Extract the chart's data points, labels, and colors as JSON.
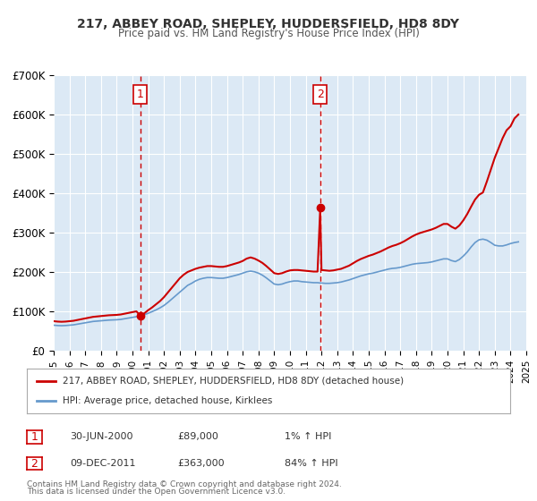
{
  "title1": "217, ABBEY ROAD, SHEPLEY, HUDDERSFIELD, HD8 8DY",
  "title2": "Price paid vs. HM Land Registry's House Price Index (HPI)",
  "xlabel": "",
  "ylabel": "",
  "ylim": [
    0,
    700000
  ],
  "yticks": [
    0,
    100000,
    200000,
    300000,
    400000,
    500000,
    600000,
    700000
  ],
  "ytick_labels": [
    "£0",
    "£100K",
    "£200K",
    "£300K",
    "£400K",
    "£500K",
    "£600K",
    "£700K"
  ],
  "bg_color": "#ffffff",
  "plot_bg_color": "#dce9f5",
  "grid_color": "#ffffff",
  "red_line_color": "#cc0000",
  "blue_line_color": "#6699cc",
  "marker_color": "#cc0000",
  "vline_color": "#cc0000",
  "annotation_bg": "#ffffff",
  "annotation_border": "#cc0000",
  "legend_label_red": "217, ABBEY ROAD, SHEPLEY, HUDDERSFIELD, HD8 8DY (detached house)",
  "legend_label_blue": "HPI: Average price, detached house, Kirklees",
  "sale1_date": "30-JUN-2000",
  "sale1_price": "£89,000",
  "sale1_hpi": "1% ↑ HPI",
  "sale1_year": 2000.5,
  "sale1_value": 89000,
  "sale2_date": "09-DEC-2011",
  "sale2_price": "£363,000",
  "sale2_hpi": "84% ↑ HPI",
  "sale2_year": 2011.92,
  "sale2_value": 363000,
  "footer1": "Contains HM Land Registry data © Crown copyright and database right 2024.",
  "footer2": "This data is licensed under the Open Government Licence v3.0.",
  "hpi_data": {
    "years": [
      1995.0,
      1995.25,
      1995.5,
      1995.75,
      1996.0,
      1996.25,
      1996.5,
      1996.75,
      1997.0,
      1997.25,
      1997.5,
      1997.75,
      1998.0,
      1998.25,
      1998.5,
      1998.75,
      1999.0,
      1999.25,
      1999.5,
      1999.75,
      2000.0,
      2000.25,
      2000.5,
      2000.75,
      2001.0,
      2001.25,
      2001.5,
      2001.75,
      2002.0,
      2002.25,
      2002.5,
      2002.75,
      2003.0,
      2003.25,
      2003.5,
      2003.75,
      2004.0,
      2004.25,
      2004.5,
      2004.75,
      2005.0,
      2005.25,
      2005.5,
      2005.75,
      2006.0,
      2006.25,
      2006.5,
      2006.75,
      2007.0,
      2007.25,
      2007.5,
      2007.75,
      2008.0,
      2008.25,
      2008.5,
      2008.75,
      2009.0,
      2009.25,
      2009.5,
      2009.75,
      2010.0,
      2010.25,
      2010.5,
      2010.75,
      2011.0,
      2011.25,
      2011.5,
      2011.75,
      2012.0,
      2012.25,
      2012.5,
      2012.75,
      2013.0,
      2013.25,
      2013.5,
      2013.75,
      2014.0,
      2014.25,
      2014.5,
      2014.75,
      2015.0,
      2015.25,
      2015.5,
      2015.75,
      2016.0,
      2016.25,
      2016.5,
      2016.75,
      2017.0,
      2017.25,
      2017.5,
      2017.75,
      2018.0,
      2018.25,
      2018.5,
      2018.75,
      2019.0,
      2019.25,
      2019.5,
      2019.75,
      2020.0,
      2020.25,
      2020.5,
      2020.75,
      2021.0,
      2021.25,
      2021.5,
      2021.75,
      2022.0,
      2022.25,
      2022.5,
      2022.75,
      2023.0,
      2023.25,
      2023.5,
      2023.75,
      2024.0,
      2024.25,
      2024.5
    ],
    "values": [
      75000,
      74000,
      73500,
      74000,
      75000,
      76000,
      78000,
      80000,
      82000,
      84000,
      86000,
      87000,
      88000,
      89000,
      90000,
      90500,
      91000,
      92000,
      94000,
      96000,
      98000,
      100000,
      103000,
      106000,
      110000,
      115000,
      120000,
      126000,
      133000,
      142000,
      152000,
      162000,
      172000,
      182000,
      192000,
      198000,
      205000,
      210000,
      213000,
      215000,
      215000,
      214000,
      213000,
      213000,
      215000,
      218000,
      221000,
      224000,
      228000,
      232000,
      234000,
      232000,
      228000,
      222000,
      214000,
      205000,
      196000,
      194000,
      196000,
      200000,
      203000,
      205000,
      205000,
      203000,
      202000,
      201000,
      200000,
      200000,
      199000,
      198000,
      198000,
      199000,
      200000,
      202000,
      205000,
      208000,
      212000,
      216000,
      220000,
      223000,
      226000,
      228000,
      231000,
      234000,
      237000,
      240000,
      242000,
      243000,
      245000,
      248000,
      251000,
      254000,
      256000,
      257000,
      258000,
      259000,
      261000,
      264000,
      267000,
      270000,
      270000,
      265000,
      262000,
      268000,
      278000,
      290000,
      305000,
      318000,
      326000,
      328000,
      325000,
      318000,
      310000,
      308000,
      308000,
      311000,
      315000,
      318000,
      320000
    ]
  },
  "hpi_scaled_data": {
    "years": [
      1995.0,
      1995.25,
      1995.5,
      1995.75,
      1996.0,
      1996.25,
      1996.5,
      1996.75,
      1997.0,
      1997.25,
      1997.5,
      1997.75,
      1998.0,
      1998.25,
      1998.5,
      1998.75,
      1999.0,
      1999.25,
      1999.5,
      1999.75,
      2000.0,
      2000.25,
      2000.5,
      2000.75,
      2001.0,
      2001.25,
      2001.5,
      2001.75,
      2002.0,
      2002.25,
      2002.5,
      2002.75,
      2003.0,
      2003.25,
      2003.5,
      2003.75,
      2004.0,
      2004.25,
      2004.5,
      2004.75,
      2005.0,
      2005.25,
      2005.5,
      2005.75,
      2006.0,
      2006.25,
      2006.5,
      2006.75,
      2007.0,
      2007.25,
      2007.5,
      2007.75,
      2008.0,
      2008.25,
      2008.5,
      2008.75,
      2009.0,
      2009.25,
      2009.5,
      2009.75,
      2010.0,
      2010.25,
      2010.5,
      2010.75,
      2011.0,
      2011.25,
      2011.5,
      2011.75,
      2011.92,
      2012.0,
      2012.25,
      2012.5,
      2012.75,
      2013.0,
      2013.25,
      2013.5,
      2013.75,
      2014.0,
      2014.25,
      2014.5,
      2014.75,
      2015.0,
      2015.25,
      2015.5,
      2015.75,
      2016.0,
      2016.25,
      2016.5,
      2016.75,
      2017.0,
      2017.25,
      2017.5,
      2017.75,
      2018.0,
      2018.25,
      2018.5,
      2018.75,
      2019.0,
      2019.25,
      2019.5,
      2019.75,
      2020.0,
      2020.25,
      2020.5,
      2020.75,
      2021.0,
      2021.25,
      2021.5,
      2021.75,
      2022.0,
      2022.25,
      2022.5,
      2022.75,
      2023.0,
      2023.25,
      2023.5,
      2023.75,
      2024.0,
      2024.25,
      2024.5
    ],
    "values": [
      75000,
      74000,
      73500,
      74000,
      75000,
      76000,
      78000,
      80000,
      82000,
      84000,
      86000,
      87000,
      88000,
      89000,
      90000,
      90500,
      91000,
      92000,
      94000,
      96000,
      98000,
      100000,
      103000,
      106000,
      110000,
      115000,
      120000,
      126000,
      133000,
      142000,
      152000,
      162000,
      172000,
      182000,
      192000,
      198000,
      205000,
      210000,
      213000,
      215000,
      215000,
      214000,
      213000,
      213000,
      215000,
      218000,
      221000,
      224000,
      228000,
      232000,
      234000,
      232000,
      228000,
      222000,
      214000,
      205000,
      196000,
      194000,
      196000,
      200000,
      203000,
      205000,
      205000,
      203000,
      202000,
      201000,
      200000,
      200000,
      199000,
      199000,
      198000,
      198000,
      199000,
      200000,
      202000,
      205000,
      208000,
      212000,
      216000,
      220000,
      223000,
      226000,
      228000,
      231000,
      234000,
      237000,
      240000,
      242000,
      243000,
      245000,
      248000,
      251000,
      254000,
      256000,
      257000,
      258000,
      259000,
      261000,
      264000,
      267000,
      270000,
      270000,
      265000,
      262000,
      268000,
      278000,
      290000,
      305000,
      318000,
      326000,
      328000,
      325000,
      318000,
      310000,
      308000,
      308000,
      311000,
      315000,
      318000,
      320000
    ]
  },
  "red_line_data": {
    "years": [
      1995.0,
      1995.25,
      1995.5,
      1995.75,
      1996.0,
      1996.25,
      1996.5,
      1996.75,
      1997.0,
      1997.25,
      1997.5,
      1997.75,
      1998.0,
      1998.25,
      1998.5,
      1998.75,
      1999.0,
      1999.25,
      1999.5,
      1999.75,
      2000.0,
      2000.25,
      2000.5,
      2000.5,
      2000.75,
      2001.0,
      2001.25,
      2001.5,
      2001.75,
      2002.0,
      2002.25,
      2002.5,
      2002.75,
      2003.0,
      2003.25,
      2003.5,
      2003.75,
      2004.0,
      2004.25,
      2004.5,
      2004.75,
      2005.0,
      2005.25,
      2005.5,
      2005.75,
      2006.0,
      2006.25,
      2006.5,
      2006.75,
      2007.0,
      2007.25,
      2007.5,
      2007.75,
      2008.0,
      2008.25,
      2008.5,
      2008.75,
      2009.0,
      2009.25,
      2009.5,
      2009.75,
      2010.0,
      2010.25,
      2010.5,
      2010.75,
      2011.0,
      2011.25,
      2011.5,
      2011.75,
      2011.92,
      2011.92,
      2012.0,
      2012.25,
      2012.5,
      2012.75,
      2013.0,
      2013.25,
      2013.5,
      2013.75,
      2014.0,
      2014.25,
      2014.5,
      2014.75,
      2015.0,
      2015.25,
      2015.5,
      2015.75,
      2016.0,
      2016.25,
      2016.5,
      2016.75,
      2017.0,
      2017.25,
      2017.5,
      2017.75,
      2018.0,
      2018.25,
      2018.5,
      2018.75,
      2019.0,
      2019.25,
      2019.5,
      2019.75,
      2020.0,
      2020.25,
      2020.5,
      2020.75,
      2021.0,
      2021.25,
      2021.5,
      2021.75,
      2022.0,
      2022.25,
      2022.5,
      2022.75,
      2023.0,
      2023.25,
      2023.5,
      2023.75,
      2024.0,
      2024.25,
      2024.5
    ],
    "values": [
      75000,
      74000,
      73500,
      74000,
      75000,
      76000,
      78000,
      80000,
      82000,
      84000,
      86000,
      87000,
      88000,
      89000,
      90000,
      90500,
      91000,
      92000,
      94000,
      96000,
      98000,
      100000,
      89000,
      89000,
      95000,
      103000,
      110000,
      118000,
      126000,
      136000,
      148000,
      160000,
      172000,
      184000,
      193000,
      200000,
      204000,
      208000,
      211000,
      213000,
      215000,
      215000,
      214000,
      213000,
      213000,
      215000,
      218000,
      221000,
      224000,
      228000,
      234000,
      237000,
      234000,
      229000,
      223000,
      215000,
      206000,
      197000,
      195000,
      197000,
      201000,
      204000,
      205000,
      205000,
      204000,
      203000,
      202000,
      201000,
      201000,
      363000,
      363000,
      205000,
      204000,
      203000,
      204000,
      206000,
      208000,
      212000,
      216000,
      222000,
      228000,
      233000,
      237000,
      241000,
      244000,
      248000,
      252000,
      257000,
      262000,
      266000,
      269000,
      273000,
      278000,
      284000,
      290000,
      295000,
      299000,
      302000,
      305000,
      308000,
      312000,
      317000,
      322000,
      322000,
      315000,
      310000,
      318000,
      331000,
      347000,
      366000,
      384000,
      396000,
      402000,
      430000,
      460000,
      490000,
      515000,
      540000,
      560000,
      570000,
      590000,
      600000
    ]
  }
}
